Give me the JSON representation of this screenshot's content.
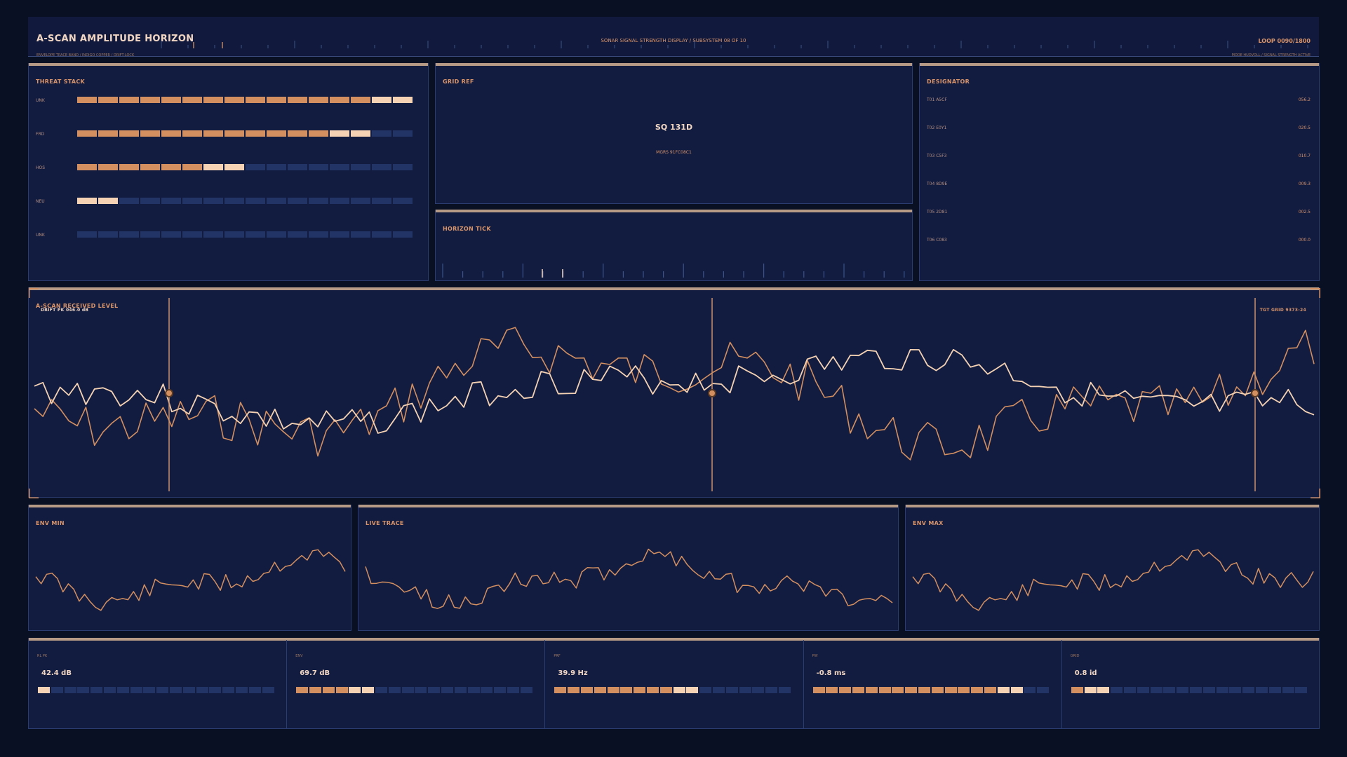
{
  "header": {
    "title": "A-SCAN AMPLITUDE HORIZON",
    "subtitle": "ENVELOPE TRACE BAND / INDIGO COPPER / DRIFT-LOCK",
    "center": "SONAR SIGNAL STRENGTH DISPLAY / SUBSYSTEM 08 OF 10",
    "loop": "LOOP 0090/1800",
    "mode": "MODE HUDVOLL / SIGNAL STRENGTH ACTIVE"
  },
  "threat": {
    "title": "THREAT STACK",
    "rows": [
      {
        "label": "UNK",
        "on": 14,
        "hi": 2
      },
      {
        "label": "FRD",
        "on": 12,
        "hi": 2
      },
      {
        "label": "HOS",
        "on": 6,
        "hi": 2
      },
      {
        "label": "NEU",
        "on": 0,
        "hi": 2
      },
      {
        "label": "UNK",
        "on": 0,
        "hi": 0
      }
    ],
    "segments": 16
  },
  "grid": {
    "title": "GRID REF",
    "value": "SQ 131D",
    "sub": "MGRS 91FC08C1"
  },
  "horizon_tick": {
    "title": "HORIZON TICK"
  },
  "designator": {
    "title": "DESIGNATOR",
    "rows": [
      {
        "label": "T01 A5CF",
        "value": "056.2"
      },
      {
        "label": "T02 E0Y1",
        "value": "020.5"
      },
      {
        "label": "T03 C5F3",
        "value": "010.7"
      },
      {
        "label": "T04 8D9E",
        "value": "009.3"
      },
      {
        "label": "T05 2D81",
        "value": "002.5"
      },
      {
        "label": "T06 C083",
        "value": "000.0"
      }
    ]
  },
  "ascan": {
    "title": "A-SCAN  RECEIVED LEVEL",
    "drift": "DRIFT  PK 046.0 dB",
    "tgt": "TGT GRID  9373-24"
  },
  "minis": [
    {
      "title": "ENV MIN"
    },
    {
      "title": "LIVE TRACE"
    },
    {
      "title": "ENV MAX"
    }
  ],
  "metrics": [
    {
      "label": "RL PK",
      "value": "42.4 dB",
      "on": 0,
      "hi": 1
    },
    {
      "label": "ENV",
      "value": "69.7 dB",
      "on": 4,
      "hi": 2
    },
    {
      "label": "PRF",
      "value": "39.9 Hz",
      "on": 9,
      "hi": 2
    },
    {
      "label": "PW",
      "value": "-0.8 ms",
      "on": 14,
      "hi": 2
    },
    {
      "label": "GRID",
      "value": "0.8 id",
      "on": 1,
      "hi": 2
    }
  ],
  "metric_segments": 18,
  "colors": {
    "background": "#0a1023",
    "panel": "#121c40",
    "copper": "#d38f60",
    "cream": "#f4d2b3",
    "dim": "#223465"
  }
}
